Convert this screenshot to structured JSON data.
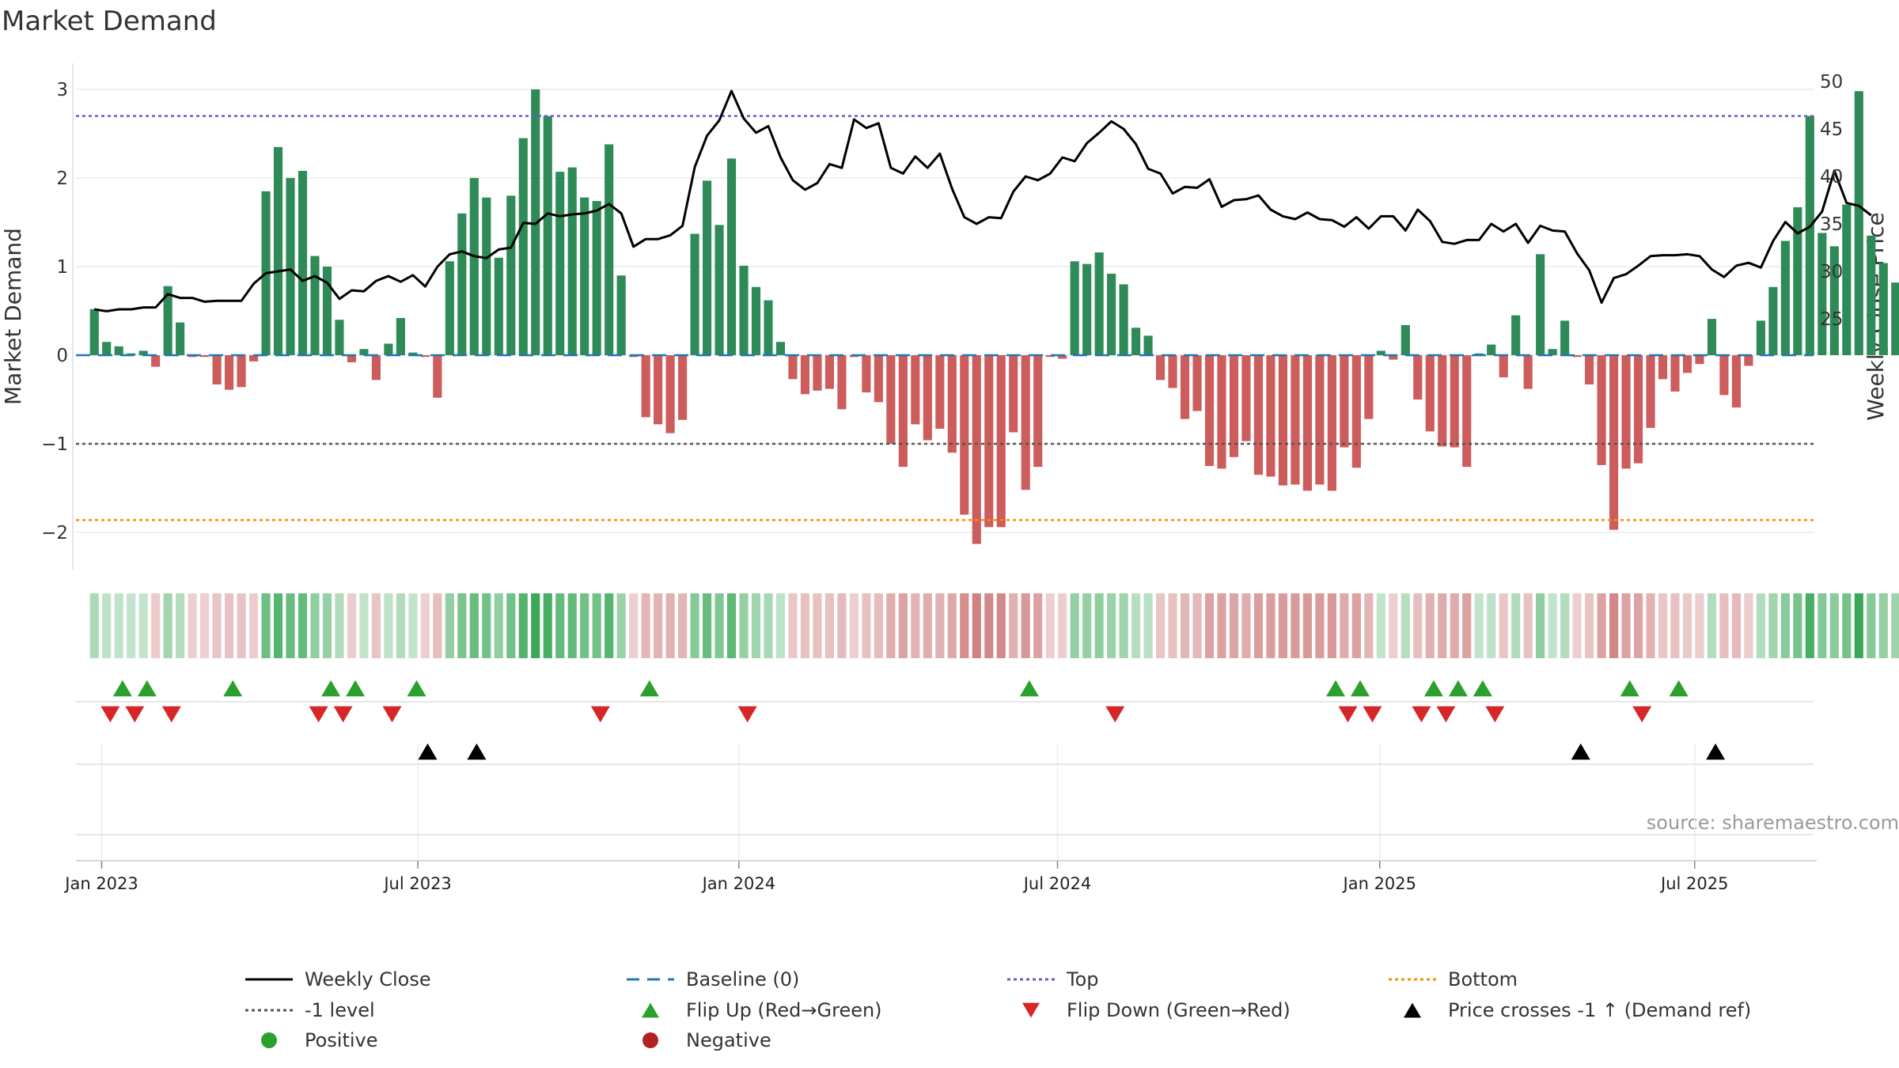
{
  "colors": {
    "positive_bar": "#2e8b57",
    "negative_bar": "#cd5c5c",
    "price_line": "#000000",
    "baseline": "#1f77b4",
    "top": "#6a5acd",
    "bottom": "#ff8c00",
    "level": "#555555",
    "flip_up": "#2ca02c",
    "flip_down": "#d62728",
    "cross": "#000000",
    "positive_dot": "#2ca02c",
    "negative_dot": "#b22222"
  },
  "chart_data": {
    "type": "bar",
    "title": "Market Demand",
    "ylabel_left": "Market Demand",
    "ylabel_right": "Weekly Close Price",
    "source": "source: sharemaestro.com",
    "ylim_left": [
      -2.4,
      3.2
    ],
    "ylim_right": [
      24.5,
      51
    ],
    "yticks_left": [
      "3",
      "2",
      "1",
      "0",
      "−1",
      "−2"
    ],
    "yticks_left_values": [
      3,
      2,
      1,
      0,
      -1,
      -2
    ],
    "yticks_right": [
      "50",
      "45",
      "40",
      "35",
      "30",
      "25"
    ],
    "yticks_right_values": [
      50,
      45,
      40,
      35,
      30,
      25
    ],
    "x_range_weeks": [
      -1.5,
      140.3
    ],
    "xticks": [
      {
        "label": "Jan 2023",
        "week": 0.6
      },
      {
        "label": "Jul 2023",
        "week": 26.4
      },
      {
        "label": "Jan 2024",
        "week": 52.6
      },
      {
        "label": "Jul 2024",
        "week": 78.6
      },
      {
        "label": "Jan 2025",
        "week": 104.9
      },
      {
        "label": "Jul 2025",
        "week": 130.6
      }
    ],
    "reference_lines": {
      "baseline": 0,
      "top": 2.7,
      "bottom": -1.86,
      "level": -1
    },
    "demand": [
      0.52,
      0.15,
      0.1,
      0.02,
      0.05,
      -0.13,
      0.78,
      0.37,
      -0.02,
      -0.02,
      -0.33,
      -0.39,
      -0.36,
      -0.07,
      1.85,
      2.35,
      2.0,
      2.08,
      1.12,
      1.0,
      0.4,
      -0.08,
      0.07,
      -0.28,
      0.13,
      0.42,
      0.03,
      -0.02,
      -0.48,
      1.06,
      1.6,
      2.0,
      1.78,
      1.1,
      1.8,
      2.45,
      3.0,
      2.7,
      2.07,
      2.12,
      1.78,
      1.74,
      2.38,
      0.9,
      -0.02,
      -0.7,
      -0.78,
      -0.88,
      -0.73,
      1.37,
      1.97,
      1.47,
      2.22,
      1.01,
      0.77,
      0.62,
      0.15,
      -0.27,
      -0.44,
      -0.4,
      -0.38,
      -0.61,
      -0.02,
      -0.42,
      -0.53,
      -1.0,
      -1.26,
      -0.78,
      -0.96,
      -0.83,
      -1.1,
      -1.8,
      -2.13,
      -1.94,
      -1.94,
      -0.87,
      -1.52,
      -1.26,
      -0.02,
      -0.04,
      1.06,
      1.03,
      1.16,
      0.92,
      0.8,
      0.31,
      0.22,
      -0.28,
      -0.37,
      -0.72,
      -0.63,
      -1.25,
      -1.28,
      -1.15,
      -0.97,
      -1.35,
      -1.37,
      -1.47,
      -1.46,
      -1.53,
      -1.46,
      -1.53,
      -1.04,
      -1.27,
      -0.72,
      0.05,
      -0.05,
      0.34,
      -0.5,
      -0.86,
      -1.03,
      -1.04,
      -1.26,
      0.02,
      0.12,
      -0.25,
      0.45,
      -0.38,
      1.14,
      0.07,
      0.39,
      -0.02,
      -0.33,
      -1.24,
      -1.97,
      -1.28,
      -1.22,
      -0.82,
      -0.27,
      -0.41,
      -0.2,
      -0.1,
      0.41,
      -0.45,
      -0.59,
      -0.12,
      0.39,
      0.77,
      1.29,
      1.67,
      2.7,
      1.38,
      1.23,
      1.7,
      2.98,
      1.35,
      1.04,
      0.82
    ],
    "price": [
      26.0,
      25.8,
      26.0,
      26.0,
      26.2,
      26.2,
      27.6,
      27.2,
      27.2,
      26.8,
      26.9,
      26.9,
      26.9,
      28.7,
      29.8,
      30.0,
      30.2,
      29.0,
      29.5,
      28.8,
      27.1,
      28.0,
      27.9,
      29.0,
      29.5,
      28.9,
      29.6,
      28.4,
      30.5,
      31.8,
      32.1,
      31.6,
      31.4,
      32.3,
      32.5,
      35.1,
      35.0,
      36.1,
      35.8,
      36.0,
      36.1,
      36.4,
      37.1,
      36.1,
      32.6,
      33.4,
      33.4,
      33.8,
      34.8,
      41.0,
      44.3,
      45.9,
      49.0,
      46.1,
      44.6,
      45.3,
      42.0,
      39.6,
      38.6,
      39.3,
      41.3,
      40.9,
      46.0,
      45.1,
      45.6,
      40.9,
      40.3,
      42.1,
      40.9,
      42.4,
      38.7,
      35.7,
      35.0,
      35.7,
      35.6,
      38.4,
      40.0,
      39.6,
      40.3,
      42.0,
      41.6,
      43.5,
      44.6,
      45.8,
      45.0,
      43.4,
      40.8,
      40.3,
      38.2,
      38.9,
      38.8,
      39.7,
      36.8,
      37.5,
      37.6,
      38.0,
      36.5,
      35.8,
      35.5,
      36.2,
      35.5,
      35.4,
      34.7,
      35.7,
      34.5,
      35.8,
      35.8,
      34.3,
      36.5,
      35.3,
      33.1,
      32.9,
      33.3,
      33.3,
      35.0,
      34.2,
      35.0,
      33.0,
      34.8,
      34.3,
      34.2,
      31.9,
      30.1,
      26.7,
      29.3,
      29.7,
      30.6,
      31.6,
      31.7,
      31.7,
      31.8,
      31.6,
      30.2,
      29.4,
      30.6,
      30.9,
      30.4,
      33.2,
      35.2,
      34.0,
      34.7,
      36.3,
      40.6,
      37.2,
      36.9,
      35.9
    ],
    "flip_up_weeks": [
      2.3,
      4.3,
      11.3,
      19.3,
      21.3,
      26.3,
      45.3,
      76.3,
      101.3,
      103.3,
      109.3,
      111.3,
      113.3,
      125.3,
      129.3
    ],
    "flip_down_weeks": [
      1.3,
      3.3,
      6.3,
      18.3,
      20.3,
      24.3,
      41.3,
      53.3,
      83.3,
      102.3,
      104.3,
      108.3,
      110.3,
      114.3,
      126.3
    ],
    "price_cross_weeks": [
      27.2,
      31.2,
      121.3,
      132.3
    ],
    "legend": [
      {
        "key": "weekly_close",
        "label": "Weekly Close"
      },
      {
        "key": "baseline",
        "label": "Baseline (0)"
      },
      {
        "key": "top",
        "label": "Top"
      },
      {
        "key": "bottom",
        "label": "Bottom"
      },
      {
        "key": "level",
        "label": "-1 level"
      },
      {
        "key": "flip_up",
        "label": "Flip Up (Red→Green)"
      },
      {
        "key": "flip_down",
        "label": "Flip Down (Green→Red)"
      },
      {
        "key": "cross",
        "label": "Price crosses -1 ↑ (Demand ref)"
      },
      {
        "key": "positive",
        "label": "Positive"
      },
      {
        "key": "negative",
        "label": "Negative"
      }
    ]
  }
}
